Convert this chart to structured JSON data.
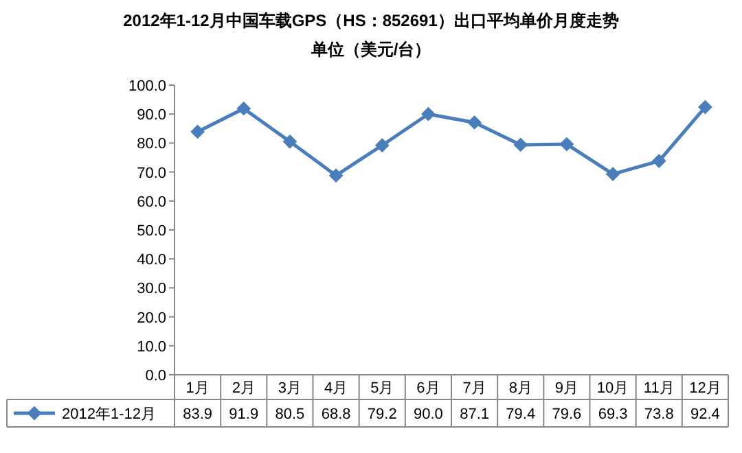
{
  "chart_data": {
    "type": "line",
    "title": "2012年1-12月中国车载GPS（HS：852691）出口平均单价月度走势",
    "subtitle": "单位（美元/台）",
    "categories": [
      "1月",
      "2月",
      "3月",
      "4月",
      "5月",
      "6月",
      "7月",
      "8月",
      "9月",
      "10月",
      "11月",
      "12月"
    ],
    "series": [
      {
        "name": "2012年1-12月",
        "color": "#4a7ebb",
        "values": [
          83.9,
          91.9,
          80.5,
          68.8,
          79.2,
          90.0,
          87.1,
          79.4,
          79.6,
          69.3,
          73.8,
          92.4
        ],
        "value_labels": [
          "83.9",
          "91.9",
          "80.5",
          "68.8",
          "79.2",
          "90.0",
          "87.1",
          "79.4",
          "79.6",
          "69.3",
          "73.8",
          "92.4"
        ]
      }
    ],
    "ylim": [
      0,
      100
    ],
    "yticks": [
      {
        "value": 0,
        "label": "0.0"
      },
      {
        "value": 10,
        "label": "10.0"
      },
      {
        "value": 20,
        "label": "20.0"
      },
      {
        "value": 30,
        "label": "30.0"
      },
      {
        "value": 40,
        "label": "40.0"
      },
      {
        "value": 50,
        "label": "50.0"
      },
      {
        "value": 60,
        "label": "60.0"
      },
      {
        "value": 70,
        "label": "70.0"
      },
      {
        "value": 80,
        "label": "80.0"
      },
      {
        "value": 90,
        "label": "90.0"
      },
      {
        "value": 100,
        "label": "100.0"
      }
    ],
    "legend": "bottom",
    "marker": "diamond",
    "line_style": "solid",
    "grid": false
  }
}
